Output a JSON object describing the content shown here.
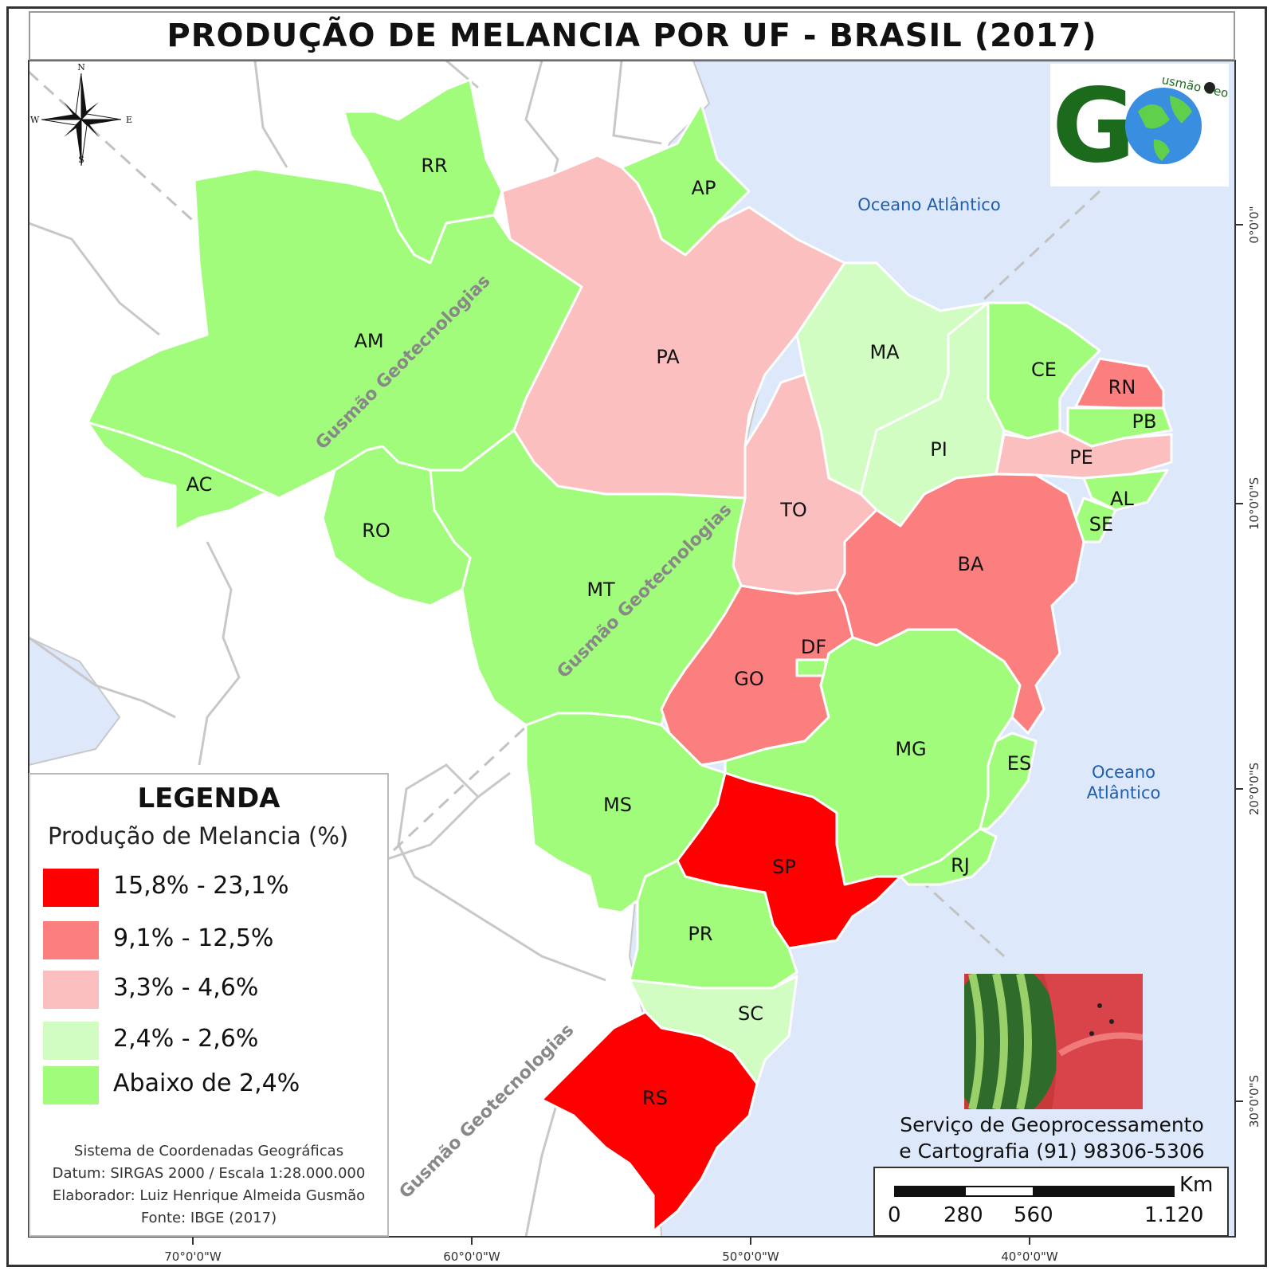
{
  "title": "PRODUÇÃO DE MELANCIA POR UF - BRASIL (2017)",
  "colors": {
    "class1": "#fe0000",
    "class2": "#fc7f7f",
    "class3": "#fcbfbf",
    "class4": "#d2fdc2",
    "class5": "#a2fc7c",
    "ocean": "#dde8fb",
    "neighbor": "#ffffff"
  },
  "compass": {
    "n": "N",
    "s": "S",
    "e": "E",
    "w": "W"
  },
  "oceans": [
    "Oceano Atlântico",
    "Oceano",
    "Atlântico"
  ],
  "states": [
    {
      "code": "RR",
      "cls": "class5"
    },
    {
      "code": "AP",
      "cls": "class5"
    },
    {
      "code": "AM",
      "cls": "class5"
    },
    {
      "code": "PA",
      "cls": "class3"
    },
    {
      "code": "MA",
      "cls": "class4"
    },
    {
      "code": "CE",
      "cls": "class5"
    },
    {
      "code": "RN",
      "cls": "class2"
    },
    {
      "code": "PB",
      "cls": "class5"
    },
    {
      "code": "PE",
      "cls": "class3"
    },
    {
      "code": "PI",
      "cls": "class4"
    },
    {
      "code": "AL",
      "cls": "class5"
    },
    {
      "code": "SE",
      "cls": "class5"
    },
    {
      "code": "AC",
      "cls": "class5"
    },
    {
      "code": "RO",
      "cls": "class5"
    },
    {
      "code": "TO",
      "cls": "class3"
    },
    {
      "code": "BA",
      "cls": "class2"
    },
    {
      "code": "MT",
      "cls": "class5"
    },
    {
      "code": "DF",
      "cls": "class5"
    },
    {
      "code": "GO",
      "cls": "class2"
    },
    {
      "code": "MG",
      "cls": "class5"
    },
    {
      "code": "ES",
      "cls": "class5"
    },
    {
      "code": "MS",
      "cls": "class5"
    },
    {
      "code": "SP",
      "cls": "class1"
    },
    {
      "code": "RJ",
      "cls": "class5"
    },
    {
      "code": "PR",
      "cls": "class5"
    },
    {
      "code": "SC",
      "cls": "class4"
    },
    {
      "code": "RS",
      "cls": "class1"
    }
  ],
  "watermark": "Gusmão Geotecnologias",
  "logo": {
    "letters": "G",
    "ring_text": "usmão Geotecnologias"
  },
  "legend": {
    "title": "LEGENDA",
    "subtitle": "Produção de Melancia (%)",
    "items": [
      {
        "label": "15,8% - 23,1%",
        "color": "#fe0000"
      },
      {
        "label": "9,1% - 12,5%",
        "color": "#fc7f7f"
      },
      {
        "label": "3,3% - 4,6%",
        "color": "#fcbfbf"
      },
      {
        "label": "2,4% - 2,6%",
        "color": "#d2fdc2"
      },
      {
        "label": "Abaixo de 2,4%",
        "color": "#a2fc7c"
      }
    ],
    "meta": [
      "Sistema de Coordenadas Geográficas",
      "Datum: SIRGAS 2000 / Escala 1:28.000.000",
      "Elaborador: Luiz Henrique Almeida Gusmão",
      "Fonte: IBGE (2017)"
    ]
  },
  "service": [
    "Serviço de Geoprocessamento",
    "e Cartografia (91) 98306-5306"
  ],
  "scale_bar": {
    "unit": "Km",
    "labels": [
      "0",
      "280",
      "560",
      "1.120"
    ]
  },
  "grid": {
    "longitudes": [
      "70°0'0\"W",
      "60°0'0\"W",
      "50°0'0\"W",
      "40°0'0\"W"
    ],
    "latitudes": [
      "0°0'0\"",
      "10°0'0\"S",
      "20°0'0\"S",
      "30°0'0\"S"
    ]
  }
}
